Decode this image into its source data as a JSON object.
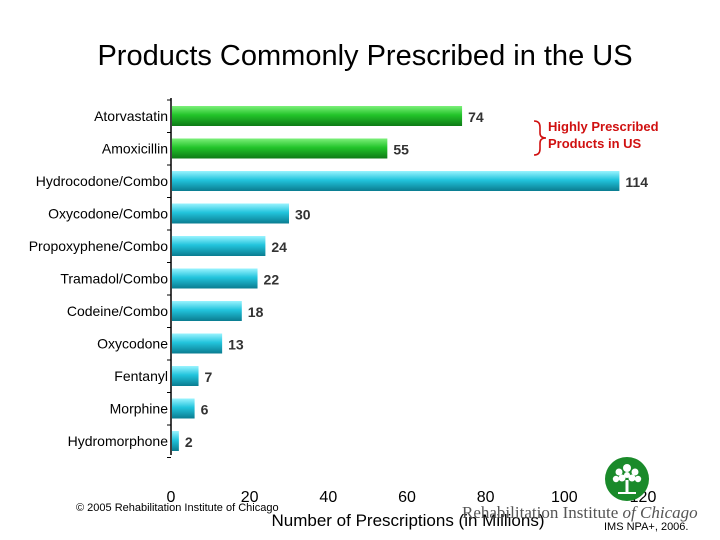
{
  "chart_data": {
    "type": "bar",
    "orientation": "horizontal",
    "title": "Products Commonly Prescribed in the US",
    "xlabel": "Number of Prescriptions (in Millions)",
    "ylabel": "",
    "xlim": [
      0,
      120
    ],
    "xticks": [
      0,
      20,
      40,
      60,
      80,
      100,
      120
    ],
    "grid": false,
    "categories": [
      "Atorvastatin",
      "Amoxicillin",
      "Hydrocodone/Combo",
      "Oxycodone/Combo",
      "Propoxyphene/Combo",
      "Tramadol/Combo",
      "Codeine/Combo",
      "Oxycodone",
      "Fentanyl",
      "Morphine",
      "Hydromorphone"
    ],
    "values": [
      74,
      55,
      114,
      30,
      24,
      22,
      18,
      13,
      7,
      6,
      2
    ],
    "bar_colors": [
      "#22c42a",
      "#22c42a",
      "#22c4dc",
      "#22c4dc",
      "#22c4dc",
      "#22c4dc",
      "#22c4dc",
      "#22c4dc",
      "#22c4dc",
      "#22c4dc",
      "#22c4dc"
    ],
    "annotation": {
      "line1": "Highly Prescribed",
      "line2": "Products in US",
      "color": "#d01010"
    }
  },
  "footer": {
    "copyright": "© 2005 Rehabilitation Institute of Chicago",
    "logo_text_1": "Rehabilitation Institute ",
    "logo_text_2": "of Chicago",
    "logo_icon": "tree-icon",
    "source": "IMS NPA+, 2006."
  },
  "colors": {
    "green_bar": "#22c42a",
    "cyan_bar": "#22c4dc",
    "logo_green": "#1a8a2a"
  }
}
